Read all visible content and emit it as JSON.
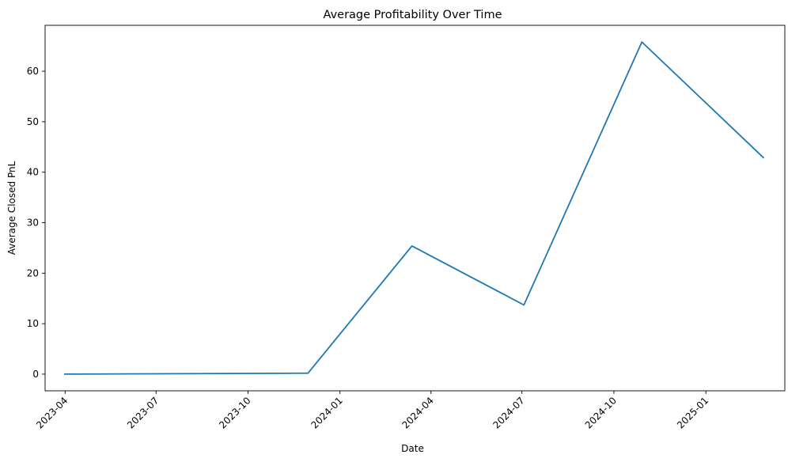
{
  "chart_data": {
    "type": "line",
    "title": "Average Profitability Over Time",
    "xlabel": "Date",
    "ylabel": "Average Closed PnL",
    "x_ticks": [
      "2023-04",
      "2023-07",
      "2023-10",
      "2024-01",
      "2024-04",
      "2024-07",
      "2024-10",
      "2025-01"
    ],
    "y_ticks": [
      0,
      10,
      20,
      30,
      40,
      50,
      60
    ],
    "ylim": [
      -3.3,
      69.1
    ],
    "xlim": [
      "2023-03-12",
      "2025-03-21"
    ],
    "grid": false,
    "series": [
      {
        "color": "#1f77b4",
        "points": [
          {
            "x": "2023-03-31",
            "y": 0.0
          },
          {
            "x": "2023-11-30",
            "y": 0.2
          },
          {
            "x": "2024-03-13",
            "y": 25.4
          },
          {
            "x": "2024-07-03",
            "y": 13.7
          },
          {
            "x": "2024-10-29",
            "y": 65.8
          },
          {
            "x": "2025-02-28",
            "y": 42.8
          }
        ]
      }
    ]
  }
}
